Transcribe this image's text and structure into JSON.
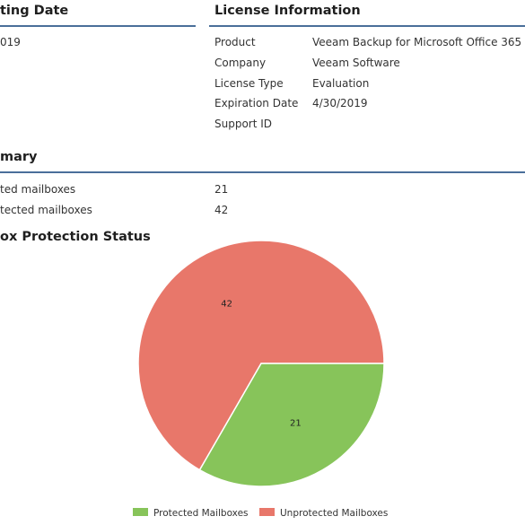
{
  "report": {
    "reporting_date_heading": "ting Date",
    "reporting_date_value": "019",
    "license_heading": "License Information",
    "license_rows": [
      {
        "label": "Product",
        "value": "Veeam Backup for Microsoft Office 365"
      },
      {
        "label": "Company",
        "value": "Veeam Software"
      },
      {
        "label": "License Type",
        "value": "Evaluation"
      },
      {
        "label": "Expiration Date",
        "value": "4/30/2019"
      },
      {
        "label": "Support ID",
        "value": ""
      }
    ],
    "summary_heading": "mary",
    "summary_rows": [
      {
        "label": "ted mailboxes",
        "value": "21"
      },
      {
        "label": "tected mailboxes",
        "value": "42"
      }
    ],
    "chart_heading": "ox Protection Status"
  },
  "colors": {
    "rule": "#4a6f9a",
    "protected": "#87c45a",
    "unprotected": "#e8776a"
  },
  "chart_data": {
    "type": "pie",
    "title": "ox Protection Status",
    "slices": [
      {
        "label": "Unprotected Mailboxes",
        "value": 42,
        "color": "#e8776a"
      },
      {
        "label": "Protected Mailboxes",
        "value": 21,
        "color": "#87c45a"
      }
    ],
    "legend": [
      "Protected Mailboxes",
      "Unprotected Mailboxes"
    ],
    "legend_position": "bottom"
  }
}
